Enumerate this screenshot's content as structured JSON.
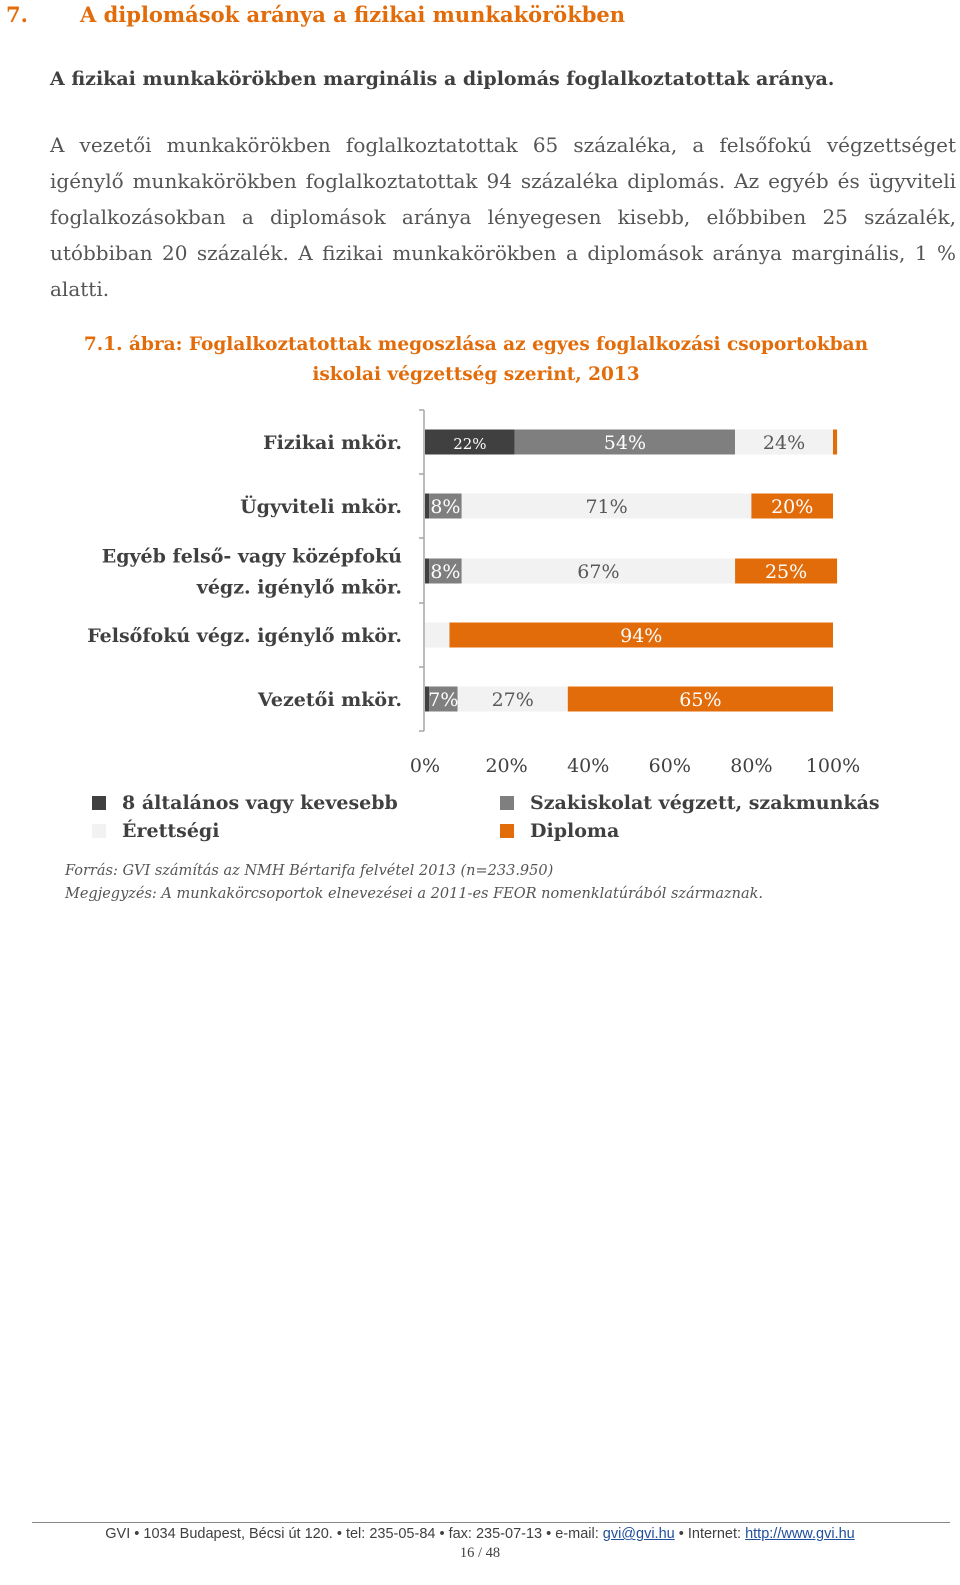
{
  "section": {
    "number": "7.",
    "title": "A diplomások aránya a fizikai munkakörökben"
  },
  "lead": "A fizikai munkakörökben marginális a diplomás foglalkoztatottak aránya.",
  "paragraph": "A vezetői munkakörökben foglalkoztatottak 65 százaléka, a felsőfokú végzettséget igénylő munkakörökben foglalkoztatottak 94 százaléka diplomás. Az egyéb és ügyviteli foglalkozásokban a diplomások aránya lényegesen kisebb, előbbiben 25 százalék, utóbbiban 20 százalék. A fizikai munkakörökben a diplomások aránya marginális, 1 % alatti.",
  "figure": {
    "title_prefix": "7.1. ábra",
    "title_sep": ": ",
    "title_text": "Foglalkoztatottak megoszlása az egyes foglalkozási csoportokban iskolai végzettség szerint, 2013"
  },
  "chart_data": {
    "type": "bar",
    "orientation": "horizontal",
    "stacked": true,
    "categories": [
      "Fizikai mkör.",
      "Ügyviteli mkör.",
      [
        "Egyéb felső- vagy középfokú",
        "végz. igénylő mkör."
      ],
      "Felsőfokú végz. igénylő mkör.",
      "Vezetői mkör."
    ],
    "series": [
      {
        "name": "8 általános vagy kevesebb",
        "color": "#404040",
        "values": [
          22,
          1,
          1,
          0,
          1
        ],
        "labels": [
          "22%",
          "",
          "",
          "",
          ""
        ]
      },
      {
        "name": "Szakiskolat végzett, szakmunkás",
        "color": "#7F7F7F",
        "values": [
          54,
          8,
          8,
          0,
          7
        ],
        "labels": [
          "54%",
          "8%",
          "8%",
          "",
          "7%"
        ]
      },
      {
        "name": "Érettségi",
        "color": "#F2F2F2",
        "values": [
          24,
          71,
          67,
          6,
          27
        ],
        "labels": [
          "24%",
          "71%",
          "67%",
          "",
          "27%"
        ]
      },
      {
        "name": "Diploma",
        "color": "#E36C0A",
        "values": [
          1,
          20,
          25,
          94,
          65
        ],
        "labels": [
          "",
          "20%",
          "25%",
          "94%",
          "65%"
        ]
      }
    ],
    "x_ticks": [
      "0%",
      "20%",
      "40%",
      "60%",
      "80%",
      "100%"
    ],
    "xlim": [
      0,
      100
    ],
    "legend_position": "bottom"
  },
  "notes": {
    "source": "Forrás: GVI számítás az NMH Bértarifa felvétel 2013 (n=233.950)",
    "remark": "Megjegyzés: A munkakörcsoportok elnevezései a 2011-es FEOR nomenklatúrából származnak."
  },
  "footer": {
    "org": "GVI • 1034 Budapest, Bécsi út 120. • tel: 235-05-84 • fax: 235-07-13 • e-mail: ",
    "email": "gvi@gvi.hu",
    "mid": " • Internet: ",
    "website": "http://www.gvi.hu",
    "page": "16 / 48"
  }
}
